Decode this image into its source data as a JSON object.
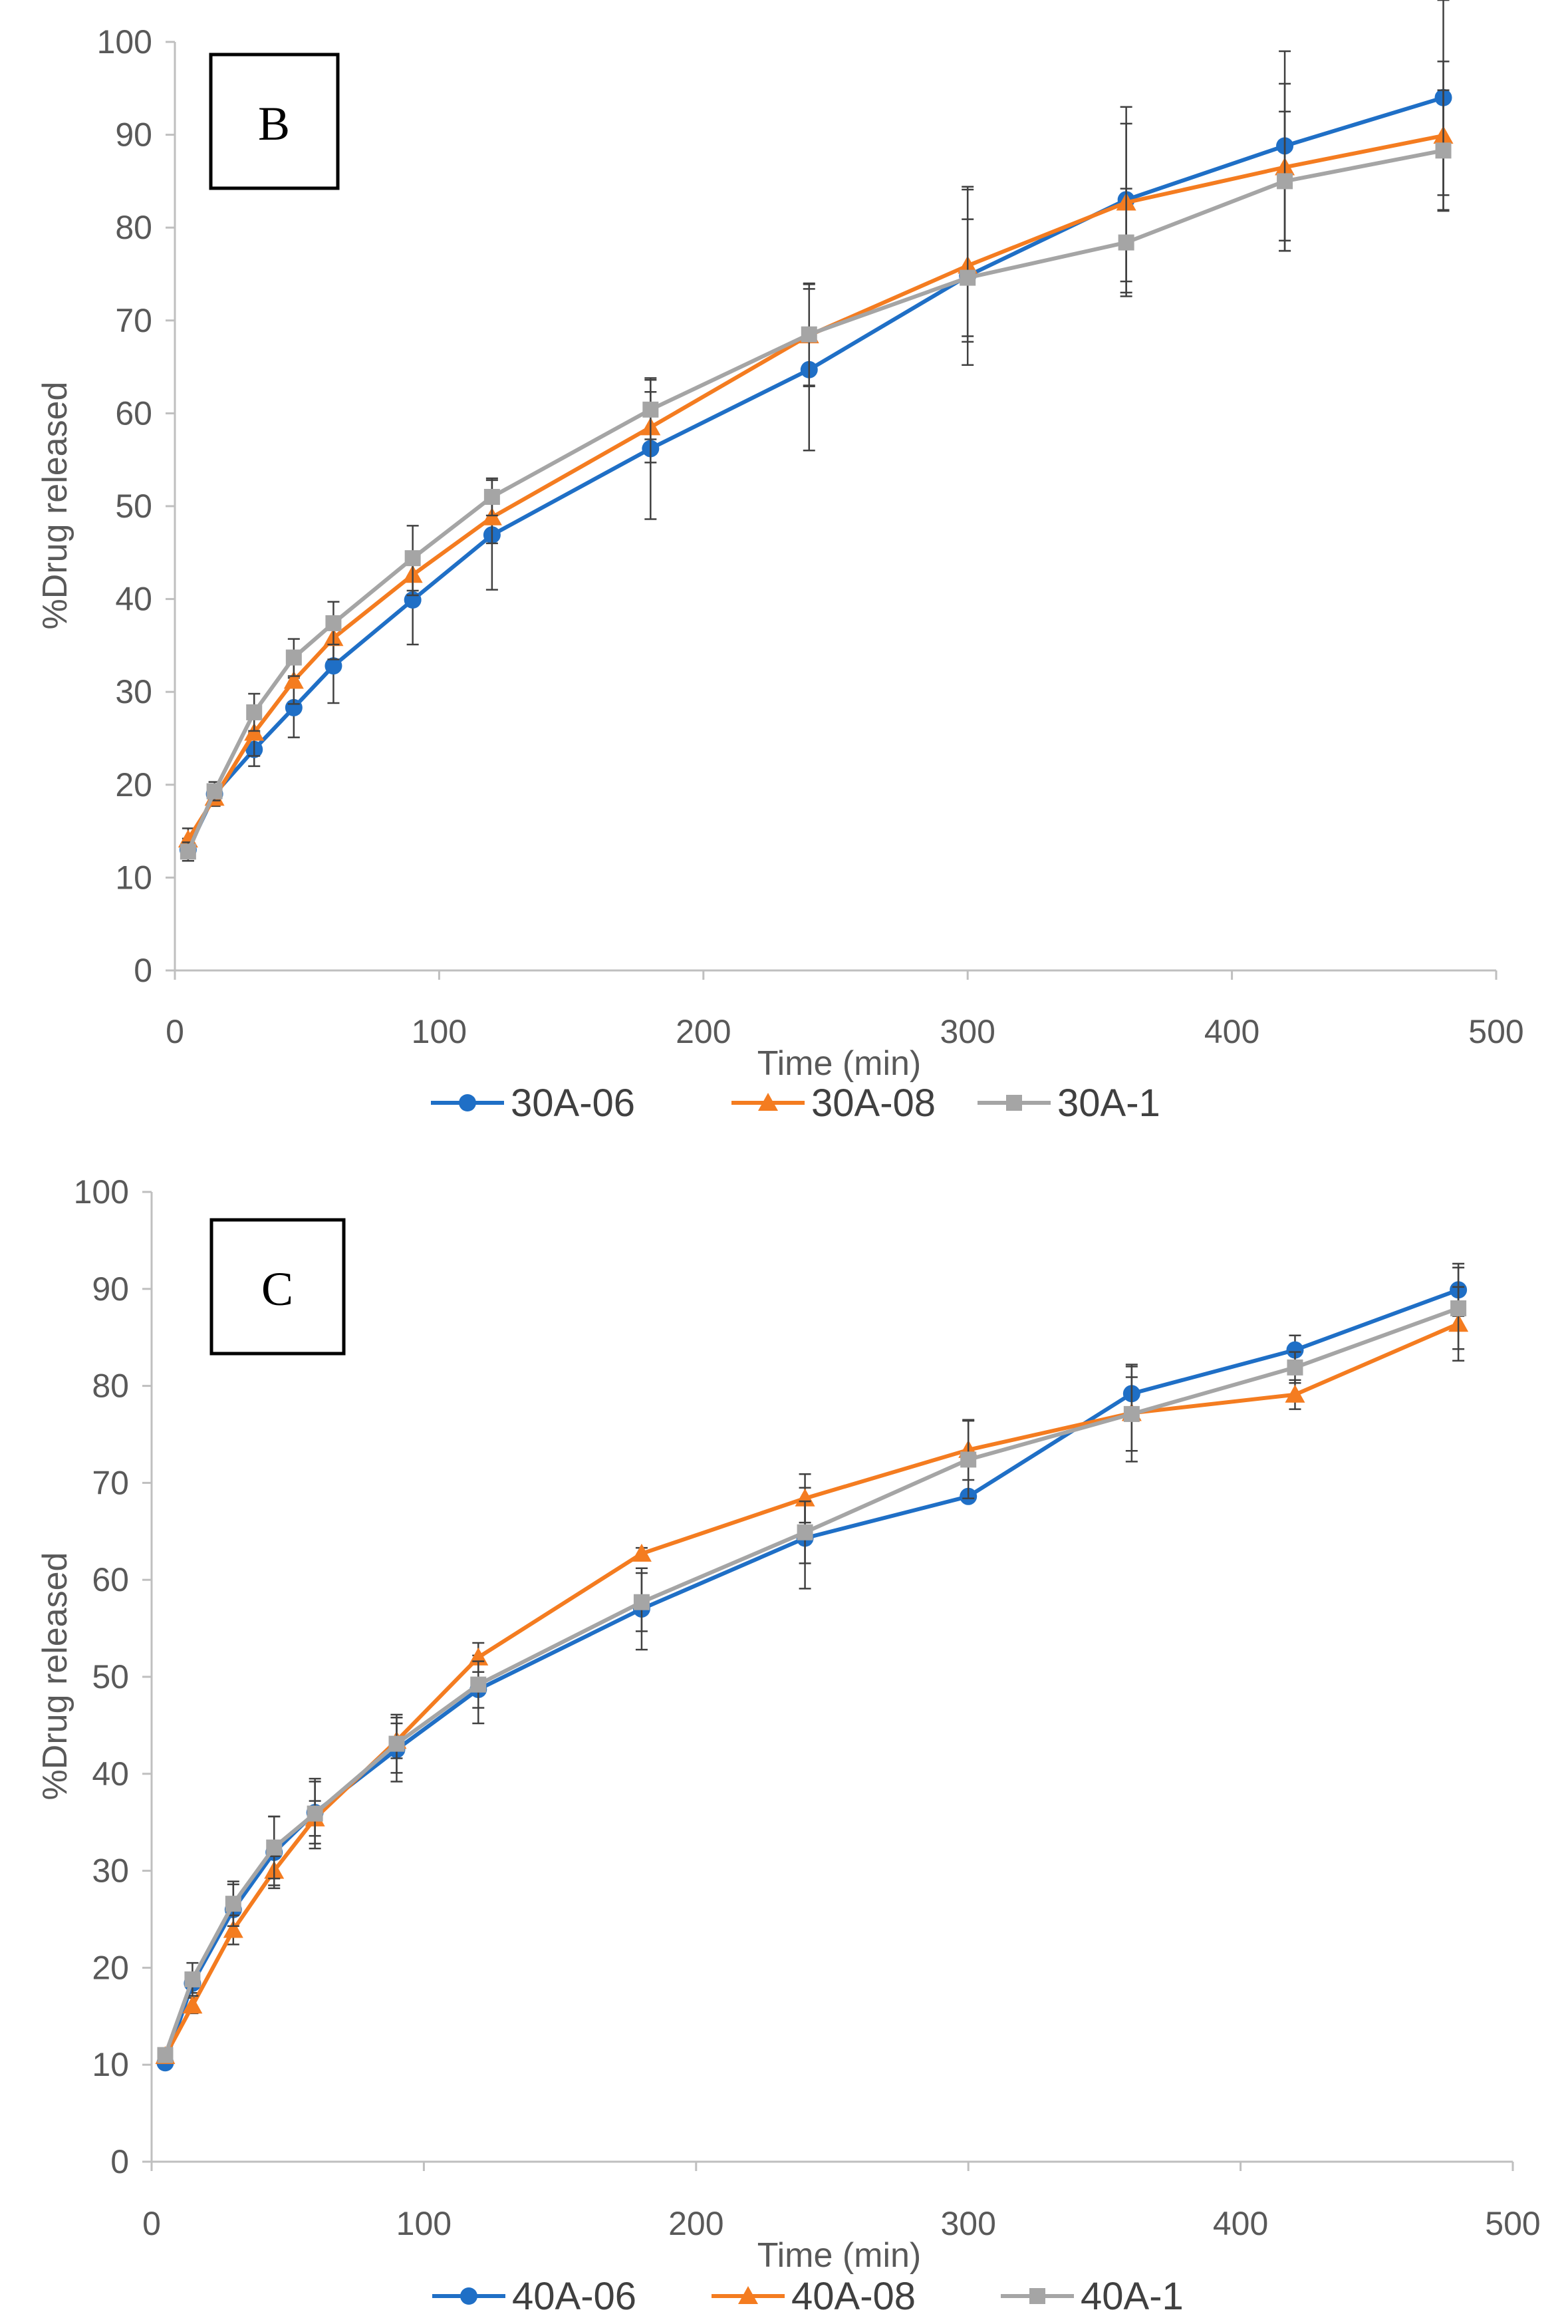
{
  "chart_data": [
    {
      "type": "line",
      "panel_label": "B",
      "title": "",
      "xlabel": "Time (min)",
      "ylabel": "%Drug released",
      "xlim": [
        0,
        500
      ],
      "ylim": [
        0,
        100
      ],
      "xticks": [
        0,
        100,
        200,
        300,
        400,
        500
      ],
      "yticks": [
        0,
        10,
        20,
        30,
        40,
        50,
        60,
        70,
        80,
        90,
        100
      ],
      "grid": false,
      "legend_position": "bottom",
      "series": [
        {
          "name": "30A-06",
          "color": "#1f6fc6",
          "marker": "circle",
          "x": [
            5,
            15,
            30,
            45,
            60,
            90,
            120,
            180,
            240,
            300,
            360,
            420,
            480
          ],
          "y": [
            13.0,
            19.0,
            23.8,
            28.3,
            32.8,
            39.9,
            46.9,
            56.2,
            64.7,
            74.8,
            83.0,
            88.8,
            94.0
          ],
          "err": [
            1.2,
            1.0,
            1.8,
            3.2,
            4.0,
            4.8,
            5.9,
            7.6,
            8.7,
            9.6,
            10.0,
            10.2,
            10.5
          ]
        },
        {
          "name": "30A-08",
          "color": "#f47c20",
          "marker": "triangle",
          "x": [
            5,
            15,
            30,
            45,
            60,
            90,
            120,
            180,
            240,
            300,
            360,
            420,
            480
          ],
          "y": [
            14.1,
            18.6,
            25.6,
            31.2,
            35.8,
            42.6,
            48.8,
            58.5,
            68.4,
            75.9,
            82.7,
            86.5,
            89.9
          ],
          "err": [
            1.2,
            0.9,
            2.5,
            2.5,
            2.3,
            2.2,
            2.8,
            3.8,
            5.5,
            8.2,
            8.5,
            9.0,
            8.0
          ]
        },
        {
          "name": "30A-1",
          "color": "#a5a5a5",
          "marker": "square",
          "x": [
            5,
            15,
            30,
            45,
            60,
            90,
            120,
            180,
            240,
            300,
            360,
            420,
            480
          ],
          "y": [
            12.8,
            19.3,
            27.8,
            33.7,
            37.4,
            44.4,
            51.0,
            60.4,
            68.5,
            74.6,
            78.4,
            85.0,
            88.3
          ],
          "err": [
            1.0,
            1.0,
            2.0,
            2.0,
            2.3,
            3.5,
            2.0,
            3.2,
            5.5,
            6.3,
            5.8,
            7.5,
            6.5
          ]
        }
      ]
    },
    {
      "type": "line",
      "panel_label": "C",
      "title": "",
      "xlabel": "Time (min)",
      "ylabel": "%Drug released",
      "xlim": [
        0,
        500
      ],
      "ylim": [
        0,
        100
      ],
      "xticks": [
        0,
        100,
        200,
        300,
        400,
        500
      ],
      "yticks": [
        0,
        10,
        20,
        30,
        40,
        50,
        60,
        70,
        80,
        90,
        100
      ],
      "grid": false,
      "legend_position": "bottom",
      "series": [
        {
          "name": "40A-06",
          "color": "#1f6fc6",
          "marker": "circle",
          "x": [
            5,
            15,
            30,
            45,
            60,
            90,
            120,
            180,
            240,
            300,
            360,
            420,
            480
          ],
          "y": [
            10.2,
            18.4,
            26.0,
            31.9,
            36.0,
            42.5,
            48.7,
            57.0,
            64.3,
            68.6,
            79.2,
            83.7,
            89.9
          ],
          "err": [
            0.5,
            1.0,
            2.6,
            3.7,
            3.2,
            3.3,
            3.5,
            4.2,
            5.2,
            0.5,
            2.8,
            1.5,
            2.7
          ]
        },
        {
          "name": "40A-08",
          "color": "#f47c20",
          "marker": "triangle",
          "x": [
            5,
            15,
            30,
            45,
            60,
            90,
            120,
            180,
            240,
            300,
            360,
            420,
            480
          ],
          "y": [
            10.9,
            16.1,
            23.9,
            30.0,
            35.4,
            43.4,
            52.0,
            62.7,
            68.4,
            73.4,
            77.2,
            79.1,
            86.4
          ],
          "err": [
            0.5,
            0.8,
            1.5,
            1.5,
            1.8,
            1.8,
            1.5,
            0.6,
            2.5,
            3.1,
            5.0,
            1.5,
            3.8
          ]
        },
        {
          "name": "40A-1",
          "color": "#a5a5a5",
          "marker": "square",
          "x": [
            5,
            15,
            30,
            45,
            60,
            90,
            120,
            180,
            240,
            300,
            360,
            420,
            480
          ],
          "y": [
            11.0,
            18.8,
            26.6,
            32.4,
            35.9,
            43.1,
            49.2,
            57.7,
            64.9,
            72.4,
            77.1,
            81.9,
            88.0
          ],
          "err": [
            0.5,
            1.7,
            2.3,
            3.2,
            3.6,
            3.0,
            2.4,
            3.0,
            3.2,
            4.0,
            3.8,
            1.6,
            4.2
          ]
        }
      ]
    }
  ]
}
